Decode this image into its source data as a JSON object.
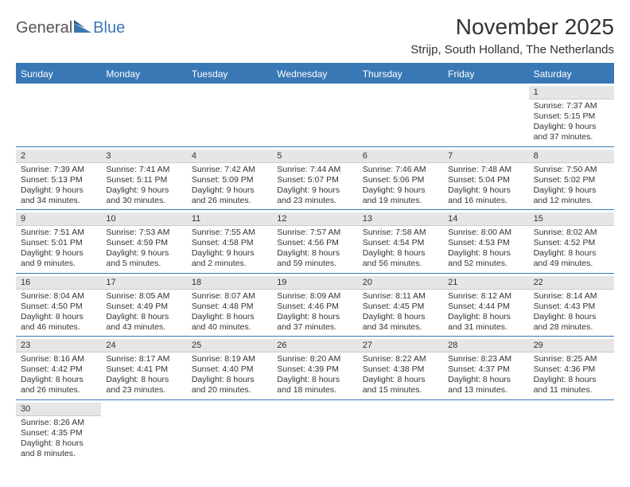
{
  "logo": {
    "general": "General",
    "blue": "Blue"
  },
  "title": "November 2025",
  "location": "Strijp, South Holland, The Netherlands",
  "colors": {
    "header_bg": "#3a78b5",
    "header_text": "#ffffff",
    "daynum_bg": "#e6e6e6",
    "text": "#333333",
    "border": "#3a78b5"
  },
  "day_headers": [
    "Sunday",
    "Monday",
    "Tuesday",
    "Wednesday",
    "Thursday",
    "Friday",
    "Saturday"
  ],
  "first_day_index": 6,
  "days": [
    {
      "n": 1,
      "sunrise": "7:37 AM",
      "sunset": "5:15 PM",
      "daylight": "9 hours and 37 minutes."
    },
    {
      "n": 2,
      "sunrise": "7:39 AM",
      "sunset": "5:13 PM",
      "daylight": "9 hours and 34 minutes."
    },
    {
      "n": 3,
      "sunrise": "7:41 AM",
      "sunset": "5:11 PM",
      "daylight": "9 hours and 30 minutes."
    },
    {
      "n": 4,
      "sunrise": "7:42 AM",
      "sunset": "5:09 PM",
      "daylight": "9 hours and 26 minutes."
    },
    {
      "n": 5,
      "sunrise": "7:44 AM",
      "sunset": "5:07 PM",
      "daylight": "9 hours and 23 minutes."
    },
    {
      "n": 6,
      "sunrise": "7:46 AM",
      "sunset": "5:06 PM",
      "daylight": "9 hours and 19 minutes."
    },
    {
      "n": 7,
      "sunrise": "7:48 AM",
      "sunset": "5:04 PM",
      "daylight": "9 hours and 16 minutes."
    },
    {
      "n": 8,
      "sunrise": "7:50 AM",
      "sunset": "5:02 PM",
      "daylight": "9 hours and 12 minutes."
    },
    {
      "n": 9,
      "sunrise": "7:51 AM",
      "sunset": "5:01 PM",
      "daylight": "9 hours and 9 minutes."
    },
    {
      "n": 10,
      "sunrise": "7:53 AM",
      "sunset": "4:59 PM",
      "daylight": "9 hours and 5 minutes."
    },
    {
      "n": 11,
      "sunrise": "7:55 AM",
      "sunset": "4:58 PM",
      "daylight": "9 hours and 2 minutes."
    },
    {
      "n": 12,
      "sunrise": "7:57 AM",
      "sunset": "4:56 PM",
      "daylight": "8 hours and 59 minutes."
    },
    {
      "n": 13,
      "sunrise": "7:58 AM",
      "sunset": "4:54 PM",
      "daylight": "8 hours and 56 minutes."
    },
    {
      "n": 14,
      "sunrise": "8:00 AM",
      "sunset": "4:53 PM",
      "daylight": "8 hours and 52 minutes."
    },
    {
      "n": 15,
      "sunrise": "8:02 AM",
      "sunset": "4:52 PM",
      "daylight": "8 hours and 49 minutes."
    },
    {
      "n": 16,
      "sunrise": "8:04 AM",
      "sunset": "4:50 PM",
      "daylight": "8 hours and 46 minutes."
    },
    {
      "n": 17,
      "sunrise": "8:05 AM",
      "sunset": "4:49 PM",
      "daylight": "8 hours and 43 minutes."
    },
    {
      "n": 18,
      "sunrise": "8:07 AM",
      "sunset": "4:48 PM",
      "daylight": "8 hours and 40 minutes."
    },
    {
      "n": 19,
      "sunrise": "8:09 AM",
      "sunset": "4:46 PM",
      "daylight": "8 hours and 37 minutes."
    },
    {
      "n": 20,
      "sunrise": "8:11 AM",
      "sunset": "4:45 PM",
      "daylight": "8 hours and 34 minutes."
    },
    {
      "n": 21,
      "sunrise": "8:12 AM",
      "sunset": "4:44 PM",
      "daylight": "8 hours and 31 minutes."
    },
    {
      "n": 22,
      "sunrise": "8:14 AM",
      "sunset": "4:43 PM",
      "daylight": "8 hours and 28 minutes."
    },
    {
      "n": 23,
      "sunrise": "8:16 AM",
      "sunset": "4:42 PM",
      "daylight": "8 hours and 26 minutes."
    },
    {
      "n": 24,
      "sunrise": "8:17 AM",
      "sunset": "4:41 PM",
      "daylight": "8 hours and 23 minutes."
    },
    {
      "n": 25,
      "sunrise": "8:19 AM",
      "sunset": "4:40 PM",
      "daylight": "8 hours and 20 minutes."
    },
    {
      "n": 26,
      "sunrise": "8:20 AM",
      "sunset": "4:39 PM",
      "daylight": "8 hours and 18 minutes."
    },
    {
      "n": 27,
      "sunrise": "8:22 AM",
      "sunset": "4:38 PM",
      "daylight": "8 hours and 15 minutes."
    },
    {
      "n": 28,
      "sunrise": "8:23 AM",
      "sunset": "4:37 PM",
      "daylight": "8 hours and 13 minutes."
    },
    {
      "n": 29,
      "sunrise": "8:25 AM",
      "sunset": "4:36 PM",
      "daylight": "8 hours and 11 minutes."
    },
    {
      "n": 30,
      "sunrise": "8:26 AM",
      "sunset": "4:35 PM",
      "daylight": "8 hours and 8 minutes."
    }
  ],
  "labels": {
    "sunrise": "Sunrise:",
    "sunset": "Sunset:",
    "daylight": "Daylight:"
  }
}
